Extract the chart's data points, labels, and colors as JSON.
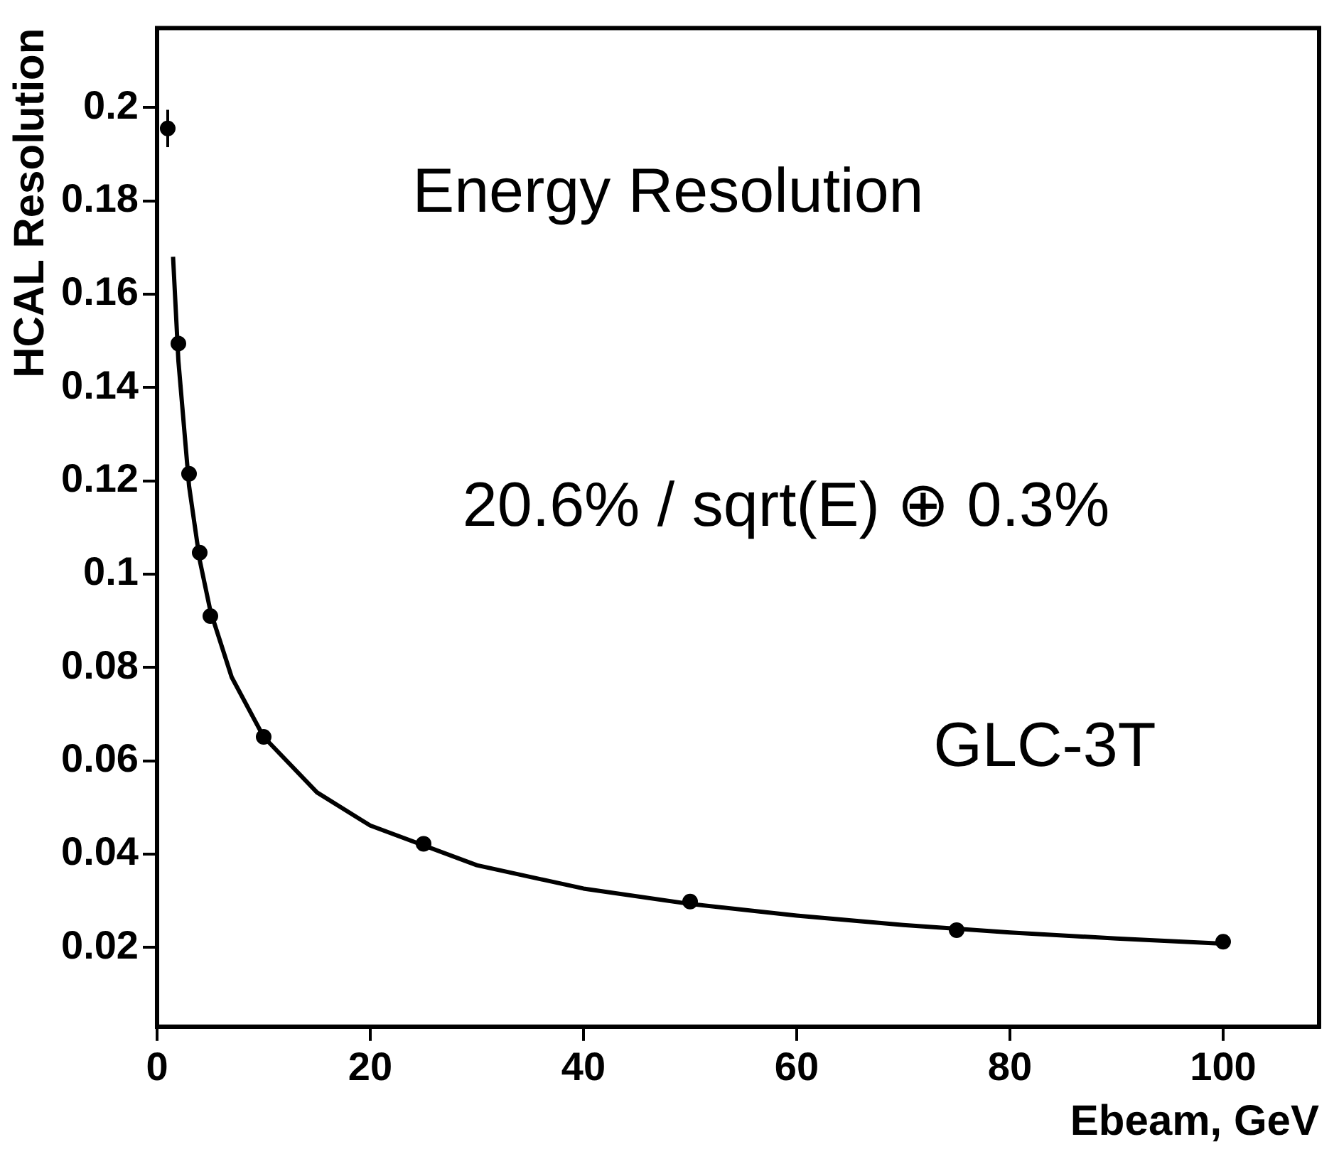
{
  "chart_data": {
    "type": "scatter",
    "xlabel": "Ebeam, GeV",
    "ylabel": "HCAL Resolution",
    "xlim": [
      0,
      109
    ],
    "xticks": [
      0,
      20,
      40,
      60,
      80,
      100
    ],
    "ylim": [
      0.003,
      0.217
    ],
    "yticks": [
      0.02,
      0.04,
      0.06,
      0.08,
      0.1,
      0.12,
      0.14,
      0.16,
      0.18,
      0.2
    ],
    "grid": false,
    "legend": false,
    "annotations": [
      "Energy Resolution",
      "20.6% / sqrt(E) ⊕ 0.3%",
      "GLC-3T"
    ],
    "series": [
      {
        "type": "scatter",
        "marker": "circle",
        "color": "#000000",
        "x": [
          1,
          2,
          3,
          4,
          5,
          10,
          25,
          50,
          75,
          100
        ],
        "values": [
          0.1955,
          0.1494,
          0.1215,
          0.1046,
          0.091,
          0.0651,
          0.0422,
          0.0298,
          0.0237,
          0.0212
        ],
        "errors": [
          0.004,
          null,
          null,
          null,
          null,
          null,
          null,
          null,
          null,
          null
        ]
      },
      {
        "type": "line",
        "marker": "none",
        "line_style": "solid",
        "color": "#000000",
        "x": [
          1.5,
          2,
          3,
          4,
          5,
          7,
          10,
          15,
          20,
          30,
          40,
          50,
          60,
          70,
          80,
          90,
          100
        ],
        "values": [
          0.168,
          0.1457,
          0.1189,
          0.103,
          0.0921,
          0.0779,
          0.0651,
          0.0532,
          0.0461,
          0.0376,
          0.0326,
          0.0293,
          0.0268,
          0.0248,
          0.0232,
          0.0219,
          0.0208
        ]
      }
    ]
  }
}
